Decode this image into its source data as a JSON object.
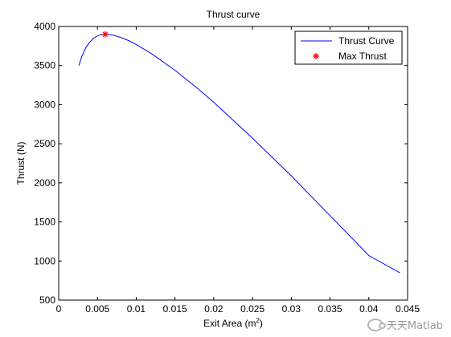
{
  "chart_data": {
    "type": "line",
    "title": "Thrust curve",
    "xlabel": "Exit Area (m",
    "xlabel_superscript": "2",
    "xlabel_suffix": ")",
    "ylabel": "Thrust (N)",
    "xlim": [
      0,
      0.045
    ],
    "ylim": [
      500,
      4000
    ],
    "x_ticks": [
      "0",
      "0.005",
      "0.01",
      "0.015",
      "0.02",
      "0.025",
      "0.03",
      "0.035",
      "0.04",
      "0.045"
    ],
    "y_ticks": [
      "500",
      "1000",
      "1500",
      "2000",
      "2500",
      "3000",
      "3500",
      "4000"
    ],
    "legend_position": "top-right",
    "grid": false,
    "series": [
      {
        "name": "Thrust Curve",
        "color": "#0000ff",
        "style": "line",
        "x": [
          0.0026,
          0.003,
          0.0035,
          0.004,
          0.0045,
          0.005,
          0.0055,
          0.006,
          0.007,
          0.008,
          0.009,
          0.01,
          0.012,
          0.015,
          0.018,
          0.02,
          0.025,
          0.03,
          0.035,
          0.04,
          0.044
        ],
        "y": [
          3500,
          3620,
          3730,
          3800,
          3850,
          3880,
          3895,
          3900,
          3890,
          3860,
          3820,
          3770,
          3650,
          3440,
          3200,
          3030,
          2570,
          2090,
          1580,
          1070,
          850
        ]
      },
      {
        "name": "Max Thrust",
        "color": "#ff0000",
        "style": "marker",
        "marker": "asterisk",
        "x": [
          0.006
        ],
        "y": [
          3900
        ]
      }
    ]
  },
  "watermark": {
    "text": "天天Matlab",
    "icon": "wechat-icon"
  }
}
